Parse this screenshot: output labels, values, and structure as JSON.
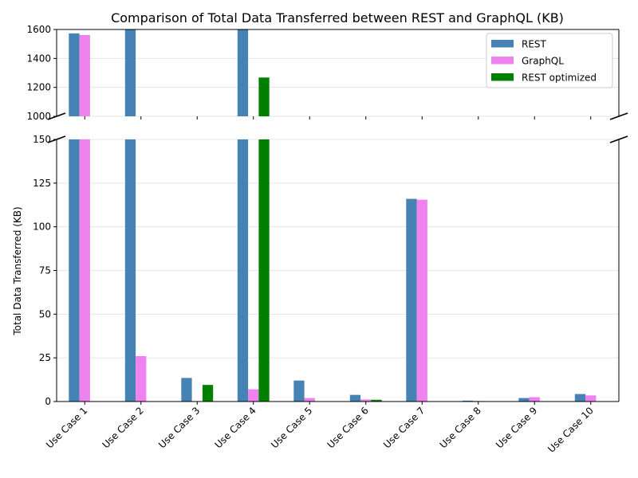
{
  "chart_data": {
    "type": "bar",
    "title": "Comparison of Total Data Transferred between REST and GraphQL (KB)",
    "xlabel": "",
    "ylabel": "Total Data Transferred (KB)",
    "categories": [
      "Use Case 1",
      "Use Case 2",
      "Use Case 3",
      "Use Case 4",
      "Use Case 5",
      "Use Case 6",
      "Use Case 7",
      "Use Case 8",
      "Use Case 9",
      "Use Case 10"
    ],
    "series": [
      {
        "name": "REST",
        "color": "#4682b4",
        "values": [
          1573,
          1650,
          13.5,
          1650,
          12,
          3.8,
          116,
          0.5,
          2,
          4.3
        ]
      },
      {
        "name": "GraphQL",
        "color": "#ee82ee",
        "values": [
          1562,
          26,
          null,
          7,
          2,
          1.2,
          115.5,
          0.3,
          2.5,
          3.5
        ]
      },
      {
        "name": "REST optimized",
        "color": "#008000",
        "values": [
          null,
          null,
          9.5,
          1268,
          null,
          1,
          null,
          null,
          null,
          null
        ]
      }
    ],
    "ylim_lower": [
      0,
      150
    ],
    "ylim_upper": [
      1000,
      1600
    ],
    "yticks_lower": [
      0,
      25,
      50,
      75,
      100,
      125,
      150
    ],
    "yticks_upper": [
      1000,
      1200,
      1400,
      1600
    ],
    "broken_axis": true,
    "grid": "y",
    "legend": "top-right"
  }
}
